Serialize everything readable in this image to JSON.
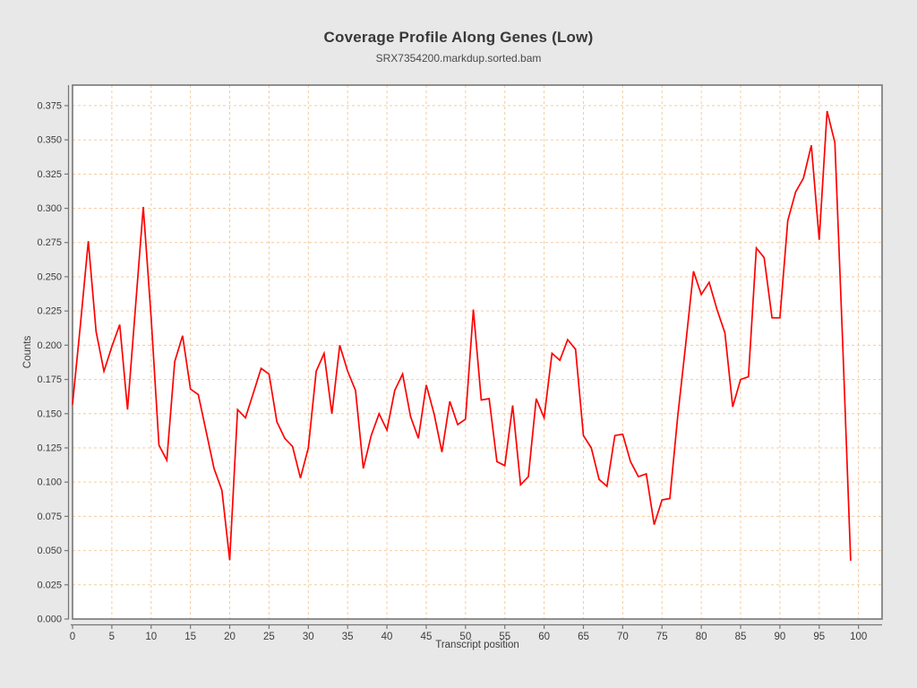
{
  "chart_data": {
    "type": "line",
    "title": "Coverage Profile Along Genes (Low)",
    "subtitle": "SRX7354200.markdup.sorted.bam",
    "xlabel": "Transcript position",
    "ylabel": "Counts",
    "xlim": [
      0,
      103
    ],
    "ylim": [
      0,
      0.39
    ],
    "x_ticks": [
      0,
      5,
      10,
      15,
      20,
      25,
      30,
      35,
      40,
      45,
      50,
      55,
      60,
      65,
      70,
      75,
      80,
      85,
      90,
      95,
      100
    ],
    "y_ticks": [
      0.0,
      0.025,
      0.05,
      0.075,
      0.1,
      0.125,
      0.15,
      0.175,
      0.2,
      0.225,
      0.25,
      0.275,
      0.3,
      0.325,
      0.35,
      0.375
    ],
    "y_tick_decimals": 3,
    "grid": true,
    "grid_style": "dashed",
    "legend_position": "none",
    "series": [
      {
        "name": "SRX7354200.markdup.sorted.bam",
        "color": "#ff0000",
        "x": [
          0,
          1,
          2,
          3,
          4,
          5,
          6,
          7,
          8,
          9,
          10,
          11,
          12,
          13,
          14,
          15,
          16,
          17,
          18,
          19,
          20,
          21,
          22,
          23,
          24,
          25,
          26,
          27,
          28,
          29,
          30,
          31,
          32,
          33,
          34,
          35,
          36,
          37,
          38,
          39,
          40,
          41,
          42,
          43,
          44,
          45,
          46,
          47,
          48,
          49,
          50,
          51,
          52,
          53,
          54,
          55,
          56,
          57,
          58,
          59,
          60,
          61,
          62,
          63,
          64,
          65,
          66,
          67,
          68,
          69,
          70,
          71,
          72,
          73,
          74,
          75,
          76,
          77,
          78,
          79,
          80,
          81,
          82,
          83,
          84,
          85,
          86,
          87,
          88,
          89,
          90,
          91,
          92,
          93,
          94,
          95,
          96,
          97,
          98,
          99
        ],
        "values": [
          0.157,
          0.215,
          0.276,
          0.21,
          0.181,
          0.199,
          0.215,
          0.153,
          0.227,
          0.301,
          0.22,
          0.127,
          0.116,
          0.188,
          0.207,
          0.168,
          0.164,
          0.137,
          0.11,
          0.094,
          0.043,
          0.153,
          0.147,
          0.165,
          0.183,
          0.179,
          0.144,
          0.132,
          0.126,
          0.103,
          0.125,
          0.181,
          0.194,
          0.15,
          0.2,
          0.181,
          0.167,
          0.11,
          0.134,
          0.15,
          0.138,
          0.167,
          0.179,
          0.148,
          0.132,
          0.171,
          0.15,
          0.122,
          0.159,
          0.142,
          0.146,
          0.226,
          0.16,
          0.161,
          0.115,
          0.112,
          0.156,
          0.098,
          0.104,
          0.161,
          0.147,
          0.194,
          0.189,
          0.204,
          0.197,
          0.134,
          0.125,
          0.102,
          0.097,
          0.134,
          0.135,
          0.115,
          0.104,
          0.106,
          0.069,
          0.087,
          0.088,
          0.148,
          0.2,
          0.254,
          0.237,
          0.246,
          0.226,
          0.209,
          0.155,
          0.175,
          0.177,
          0.271,
          0.264,
          0.22,
          0.22,
          0.291,
          0.312,
          0.322,
          0.346,
          0.277,
          0.371,
          0.348,
          0.2,
          0.043
        ]
      }
    ],
    "colors": {
      "figure_background": "#e8e8e8",
      "plot_background": "#ffffff",
      "grid": "#f6cb9d",
      "axis": "#767676",
      "text": "#3c3c3c",
      "line": "#ff0000"
    }
  }
}
